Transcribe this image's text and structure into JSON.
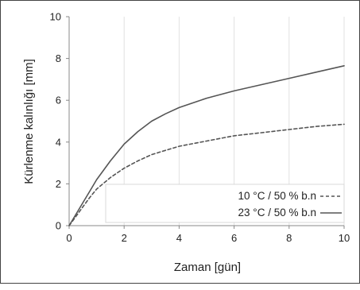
{
  "chart_data": {
    "type": "line",
    "xlabel": "Zaman [gün]",
    "ylabel": "Kürlenme kalınlığı [mm]",
    "xlim": [
      0,
      10
    ],
    "ylim": [
      0,
      10
    ],
    "xticks": [
      "0",
      "2",
      "4",
      "6",
      "8",
      "10"
    ],
    "yticks": [
      "0",
      "2",
      "4",
      "6",
      "8",
      "10"
    ],
    "grid": "vertical",
    "legend_position": "bottom-right",
    "series": [
      {
        "name": "10 °C / 50 % b.n",
        "style": "dashed",
        "color": "#555555",
        "x": [
          0,
          0.25,
          0.5,
          0.75,
          1,
          1.5,
          2,
          2.5,
          3,
          3.5,
          4,
          5,
          6,
          7,
          8,
          9,
          10
        ],
        "y": [
          0,
          0.45,
          0.9,
          1.35,
          1.75,
          2.3,
          2.75,
          3.1,
          3.4,
          3.6,
          3.8,
          4.05,
          4.3,
          4.45,
          4.6,
          4.75,
          4.85
        ]
      },
      {
        "name": "23 °C / 50 % b.n",
        "style": "solid",
        "color": "#555555",
        "x": [
          0,
          0.25,
          0.5,
          0.75,
          1,
          1.5,
          2,
          2.5,
          3,
          3.5,
          4,
          5,
          6,
          7,
          8,
          9,
          10
        ],
        "y": [
          0,
          0.55,
          1.1,
          1.65,
          2.2,
          3.1,
          3.9,
          4.5,
          5.0,
          5.35,
          5.65,
          6.1,
          6.45,
          6.75,
          7.05,
          7.35,
          7.65
        ]
      }
    ]
  }
}
